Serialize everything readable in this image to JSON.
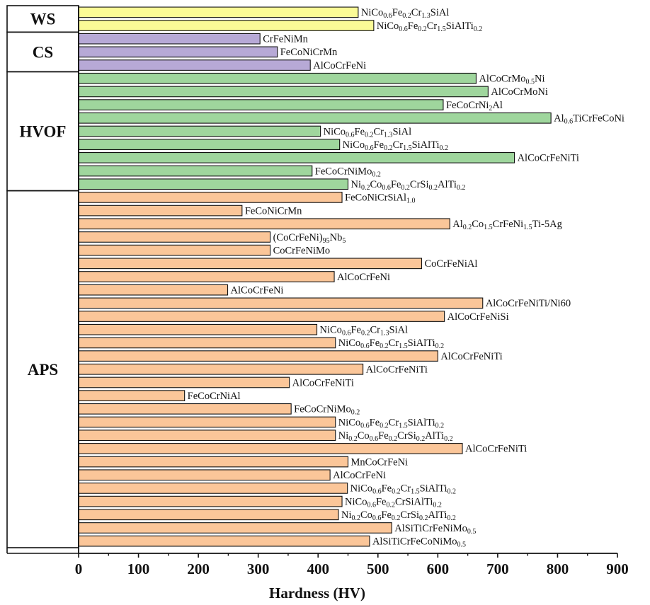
{
  "chart_data": {
    "type": "bar",
    "orientation": "horizontal",
    "xlabel": "Hardness (HV)",
    "xlim": [
      0,
      900
    ],
    "xticks": [
      "0",
      "100",
      "200",
      "300",
      "400",
      "500",
      "600",
      "700",
      "800",
      "900"
    ],
    "grid": false,
    "legend": "none",
    "groups": [
      {
        "name": "WS",
        "color": "#fbfb96",
        "bars": [
          {
            "label": [
              "NiCo",
              {
                "sub": "0.6"
              },
              "Fe",
              {
                "sub": "0.2"
              },
              "Cr",
              {
                "sub": "1.3"
              },
              "SiAl"
            ],
            "value": 467
          },
          {
            "label": [
              "NiCo",
              {
                "sub": "0.6"
              },
              "Fe",
              {
                "sub": "0.2"
              },
              "Cr",
              {
                "sub": "1.5"
              },
              "SiAlTi",
              {
                "sub": "0.2"
              }
            ],
            "value": 493
          }
        ]
      },
      {
        "name": "CS",
        "color": "#b7a9d6",
        "bars": [
          {
            "label": [
              "CrFeNiMn"
            ],
            "value": 303
          },
          {
            "label": [
              "FeCoNiCrMn"
            ],
            "value": 332
          },
          {
            "label": [
              "AlCoCrFeNi"
            ],
            "value": 387
          }
        ]
      },
      {
        "name": "HVOF",
        "color": "#9fd69d",
        "bars": [
          {
            "label": [
              "AlCoCrMo",
              {
                "sub": "0.5"
              },
              "Ni"
            ],
            "value": 664
          },
          {
            "label": [
              "AlCoCrMoNi"
            ],
            "value": 684
          },
          {
            "label": [
              "FeCoCrNi",
              {
                "sub": "2"
              },
              "Al"
            ],
            "value": 609
          },
          {
            "label": [
              "Al",
              {
                "sub": "0.6"
              },
              "TiCrFeCoNi"
            ],
            "value": 789
          },
          {
            "label": [
              "NiCo",
              {
                "sub": "0.6"
              },
              "Fe",
              {
                "sub": "0.2"
              },
              "Cr",
              {
                "sub": "1.3"
              },
              "SiAl"
            ],
            "value": 404
          },
          {
            "label": [
              "NiCo",
              {
                "sub": "0.6"
              },
              "Fe",
              {
                "sub": "0.2"
              },
              "Cr",
              {
                "sub": "1.5"
              },
              "SiAlTi",
              {
                "sub": "0.2"
              }
            ],
            "value": 436
          },
          {
            "label": [
              "AlCoCrFeNiTi"
            ],
            "value": 728
          },
          {
            "label": [
              "FeCoCrNiMo",
              {
                "sub": "0.2"
              }
            ],
            "value": 390
          },
          {
            "label": [
              "Ni",
              {
                "sub": "0.2"
              },
              "Co",
              {
                "sub": "0.6"
              },
              "Fe",
              {
                "sub": "0.2"
              },
              "CrSi",
              {
                "sub": "0.2"
              },
              "AlTi",
              {
                "sub": "0.2"
              }
            ],
            "value": 450
          }
        ]
      },
      {
        "name": "APS",
        "color": "#fbc699",
        "bars": [
          {
            "label": [
              "FeCoNiCrSiAl",
              {
                "sub": "1.0"
              }
            ],
            "value": 440
          },
          {
            "label": [
              "FeCoNiCrMn"
            ],
            "value": 273
          },
          {
            "label": [
              "Al",
              {
                "sub": "0.2"
              },
              "Co",
              {
                "sub": "1.5"
              },
              "CrFeNi",
              {
                "sub": "1.5"
              },
              "Ti-5Ag"
            ],
            "value": 620
          },
          {
            "label": [
              "(CoCrFeNi)",
              {
                "sub": "95"
              },
              "Nb",
              {
                "sub": "5"
              }
            ],
            "value": 320
          },
          {
            "label": [
              "CoCrFeNiMo"
            ],
            "value": 320
          },
          {
            "label": [
              "CoCrFeNiAl"
            ],
            "value": 573
          },
          {
            "label": [
              "AlCoCrFeNi"
            ],
            "value": 427
          },
          {
            "label": [
              "AlCoCrFeNi"
            ],
            "value": 249
          },
          {
            "label": [
              "AlCoCrFeNiTi/Ni60"
            ],
            "value": 675
          },
          {
            "label": [
              "AlCoCrFeNiSi"
            ],
            "value": 611
          },
          {
            "label": [
              "NiCo",
              {
                "sub": "0.6"
              },
              "Fe",
              {
                "sub": "0.2"
              },
              "Cr",
              {
                "sub": "1.3"
              },
              "SiAl"
            ],
            "value": 398
          },
          {
            "label": [
              "NiCo",
              {
                "sub": "0.6"
              },
              "Fe",
              {
                "sub": "0.2"
              },
              "Cr",
              {
                "sub": "1.5"
              },
              "SiAlTi",
              {
                "sub": "0.2"
              }
            ],
            "value": 429
          },
          {
            "label": [
              "AlCoCrFeNiTi"
            ],
            "value": 600
          },
          {
            "label": [
              "AlCoCrFeNiTi"
            ],
            "value": 475
          },
          {
            "label": [
              "AlCoCrFeNiTi"
            ],
            "value": 352
          },
          {
            "label": [
              "FeCoCrNiAl"
            ],
            "value": 177
          },
          {
            "label": [
              "FeCoCrNiMo",
              {
                "sub": "0.2"
              }
            ],
            "value": 355
          },
          {
            "label": [
              "NiCo",
              {
                "sub": "0.6"
              },
              "Fe",
              {
                "sub": "0.2"
              },
              "Cr",
              {
                "sub": "1.5"
              },
              "SiAlTi",
              {
                "sub": "0.2"
              }
            ],
            "value": 429
          },
          {
            "label": [
              "Ni",
              {
                "sub": "0.2"
              },
              "Co",
              {
                "sub": "0.6"
              },
              "Fe",
              {
                "sub": "0.2"
              },
              "CrSi",
              {
                "sub": "0.2"
              },
              "AlTi",
              {
                "sub": "0.2"
              }
            ],
            "value": 429
          },
          {
            "label": [
              "AlCoCrFeNiTi"
            ],
            "value": 641
          },
          {
            "label": [
              "MnCoCrFeNi"
            ],
            "value": 450
          },
          {
            "label": [
              "AlCoCrFeNi"
            ],
            "value": 420
          },
          {
            "label": [
              "NiCo",
              {
                "sub": "0.6"
              },
              "Fe",
              {
                "sub": "0.2"
              },
              "Cr",
              {
                "sub": "1.5"
              },
              "SiAlTi",
              {
                "sub": "0.2"
              }
            ],
            "value": 449
          },
          {
            "label": [
              "NiCo",
              {
                "sub": "0.6"
              },
              "Fe",
              {
                "sub": "0.2"
              },
              "CrSiAlTi",
              {
                "sub": "0.2"
              }
            ],
            "value": 440
          },
          {
            "label": [
              "Ni",
              {
                "sub": "0.2"
              },
              "Co",
              {
                "sub": "0.6"
              },
              "Fe",
              {
                "sub": "0.2"
              },
              "CrSi",
              {
                "sub": "0.2"
              },
              "AlTi",
              {
                "sub": "0.2"
              }
            ],
            "value": 434
          },
          {
            "label": [
              "AlSiTiCrFeNiMo",
              {
                "sub": "0.5"
              }
            ],
            "value": 523
          },
          {
            "label": [
              "AlSiTiCrFeCoNiMo",
              {
                "sub": "0.5"
              }
            ],
            "value": 486
          }
        ]
      }
    ]
  }
}
